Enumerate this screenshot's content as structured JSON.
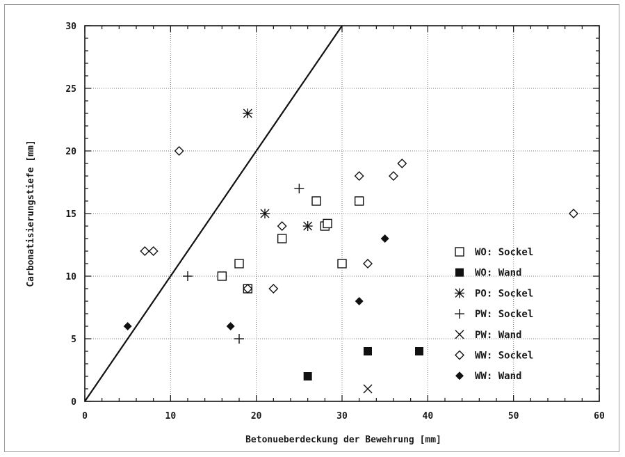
{
  "chart_data": {
    "type": "scatter",
    "title": "",
    "xlabel": "Betonueberdeckung der Bewehrung [mm]",
    "ylabel": "Carbonatisierungstiefe [mm]",
    "xlim": [
      0,
      60
    ],
    "ylim": [
      0,
      30
    ],
    "x_ticks": [
      "0",
      "10",
      "20",
      "30",
      "40",
      "50",
      "60"
    ],
    "y_ticks": [
      "0",
      "5",
      "10",
      "15",
      "20",
      "25",
      "30"
    ],
    "grid": true,
    "legend_position": "right",
    "reference_line": [
      [
        0,
        0
      ],
      [
        30,
        30
      ]
    ],
    "series": [
      {
        "name": "WO: Sockel",
        "marker": "square-open",
        "points": [
          [
            16,
            10
          ],
          [
            18,
            11
          ],
          [
            19,
            9
          ],
          [
            23,
            13
          ],
          [
            27,
            16
          ],
          [
            28,
            14
          ],
          [
            28.3,
            14.2
          ],
          [
            30,
            11
          ],
          [
            32,
            16
          ]
        ]
      },
      {
        "name": "WO: Wand",
        "marker": "square-filled",
        "points": [
          [
            26,
            2
          ],
          [
            33,
            4
          ],
          [
            39,
            4
          ]
        ]
      },
      {
        "name": "PO: Sockel",
        "marker": "asterisk",
        "points": [
          [
            19,
            23
          ],
          [
            21,
            15
          ],
          [
            26,
            14
          ]
        ]
      },
      {
        "name": "PW: Sockel",
        "marker": "plus",
        "points": [
          [
            12,
            10
          ],
          [
            18,
            5
          ],
          [
            25,
            17
          ]
        ]
      },
      {
        "name": "PW: Wand",
        "marker": "cross",
        "points": [
          [
            33,
            1
          ]
        ]
      },
      {
        "name": "WW: Sockel",
        "marker": "diamond-open",
        "points": [
          [
            7,
            12
          ],
          [
            8,
            12
          ],
          [
            11,
            20
          ],
          [
            19,
            9
          ],
          [
            22,
            9
          ],
          [
            23,
            14
          ],
          [
            32,
            18
          ],
          [
            33,
            11
          ],
          [
            36,
            18
          ],
          [
            37,
            19
          ],
          [
            57,
            15
          ]
        ]
      },
      {
        "name": "WW: Wand",
        "marker": "diamond-filled",
        "points": [
          [
            5,
            6
          ],
          [
            17,
            6
          ],
          [
            32,
            8
          ],
          [
            35,
            13
          ]
        ]
      }
    ]
  }
}
